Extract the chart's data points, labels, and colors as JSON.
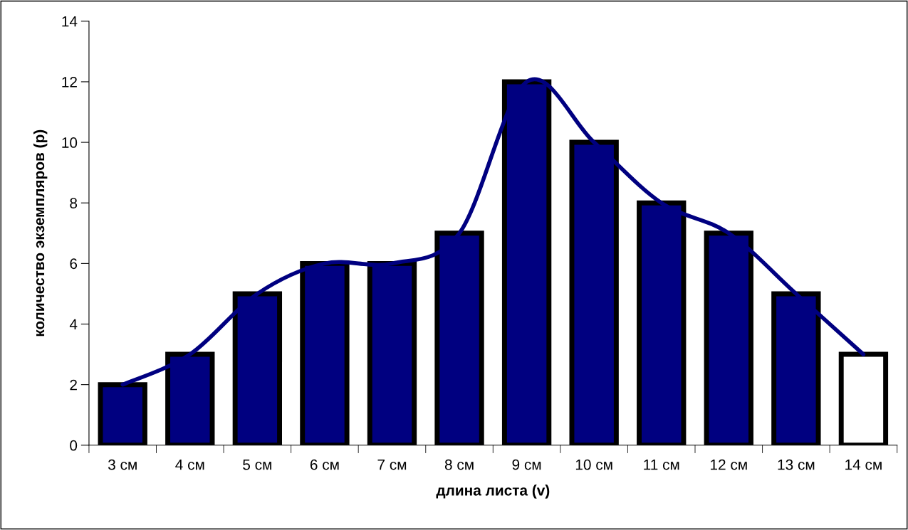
{
  "chart_data": {
    "type": "bar",
    "xlabel": "длина листа (v)",
    "ylabel": "количество экземпляров (p)",
    "categories": [
      "3 см",
      "4 см",
      "5 см",
      "6 см",
      "7 см",
      "8 см",
      "9 см",
      "10 см",
      "11 см",
      "12 см",
      "13 см",
      "14 см"
    ],
    "series": [
      {
        "values": [
          2,
          3,
          5,
          6,
          6,
          7,
          12,
          10,
          8,
          7,
          5,
          3
        ],
        "colors": [
          "#000080",
          "#000080",
          "#000080",
          "#000080",
          "#000080",
          "#000080",
          "#000080",
          "#000080",
          "#000080",
          "#000080",
          "#000080",
          "#ffffff"
        ]
      },
      {
        "type": "line",
        "color": "#000080",
        "values": [
          2,
          3,
          5,
          6,
          6,
          7,
          12,
          10,
          8,
          7,
          5,
          3
        ]
      }
    ],
    "ylim": [
      0,
      14
    ],
    "yticks": [
      0,
      2,
      4,
      6,
      8,
      10,
      12,
      14
    ],
    "grid": false,
    "marker": "none",
    "line_style": "solid"
  }
}
